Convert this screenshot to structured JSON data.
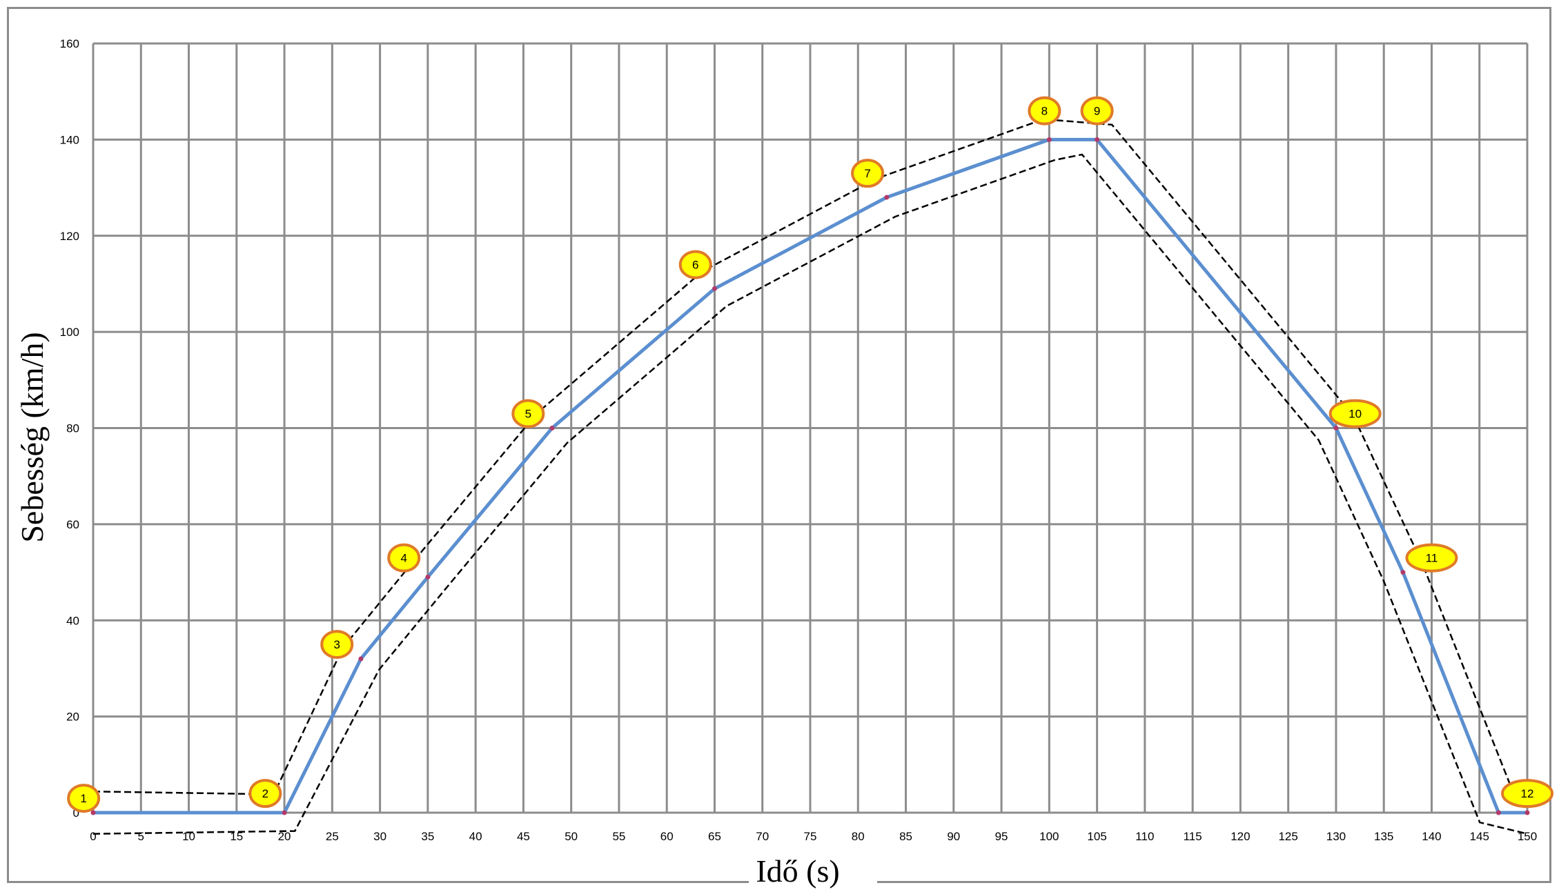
{
  "chart_data": {
    "type": "line",
    "xlabel": "Idő (s)",
    "ylabel": "Sebesség (km/h)",
    "xlim": [
      0,
      150
    ],
    "ylim": [
      0,
      160
    ],
    "x_ticks": [
      0,
      5,
      10,
      15,
      20,
      25,
      30,
      35,
      40,
      45,
      50,
      55,
      60,
      65,
      70,
      75,
      80,
      85,
      90,
      95,
      100,
      105,
      110,
      115,
      120,
      125,
      130,
      135,
      140,
      145,
      150
    ],
    "y_ticks": [
      0,
      20,
      40,
      60,
      80,
      100,
      120,
      140,
      160
    ],
    "grid": true,
    "legend": "none",
    "series": [
      {
        "color": "#5b8fd0",
        "marker_color": "#b23a6a",
        "x": [
          0,
          20,
          28,
          35,
          48,
          65,
          83,
          100,
          105,
          130,
          137,
          147,
          150
        ],
        "y": [
          0,
          0,
          32,
          49,
          80,
          109,
          128,
          140,
          140,
          80,
          50,
          0,
          0
        ]
      }
    ],
    "tolerance_band": {
      "color": "#000000",
      "half_width_kmh": 2
    },
    "annotations": [
      {
        "label": "1",
        "x": -1,
        "y": 3
      },
      {
        "label": "2",
        "x": 18,
        "y": 4
      },
      {
        "label": "3",
        "x": 25.5,
        "y": 35
      },
      {
        "label": "4",
        "x": 32.5,
        "y": 53
      },
      {
        "label": "5",
        "x": 45.5,
        "y": 83
      },
      {
        "label": "6",
        "x": 63,
        "y": 114
      },
      {
        "label": "7",
        "x": 81,
        "y": 133
      },
      {
        "label": "8",
        "x": 99.5,
        "y": 146
      },
      {
        "label": "9",
        "x": 105,
        "y": 146
      },
      {
        "label": "10",
        "x": 132,
        "y": 83
      },
      {
        "label": "11",
        "x": 140,
        "y": 53
      },
      {
        "label": "12",
        "x": 150,
        "y": 4
      }
    ],
    "colors": {
      "grid": "#8c8c8c",
      "badge_fill": "#ffff00",
      "badge_stroke": "#e07a28",
      "line": "#5b8fd0"
    }
  }
}
